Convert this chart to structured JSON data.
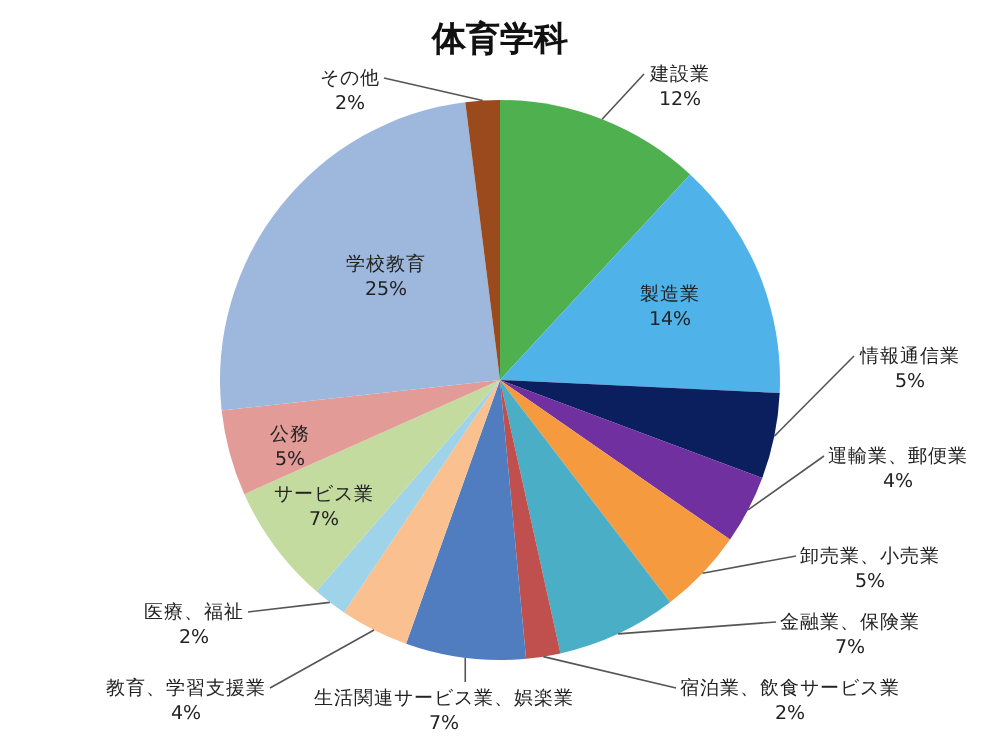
{
  "chart_data": {
    "type": "pie",
    "title": "体育学科",
    "categories": [
      "建設業",
      "製造業",
      "情報通信業",
      "運輸業、郵便業",
      "卸売業、小売業",
      "金融業、保険業",
      "宿泊業、飲食サービス業",
      "生活関連サービス業、娯楽業",
      "教育、学習支援業",
      "医療、福祉",
      "サービス業",
      "公務",
      "学校教育",
      "その他"
    ],
    "values": [
      12,
      14,
      5,
      4,
      5,
      7,
      2,
      7,
      4,
      2,
      7,
      5,
      25,
      2
    ],
    "value_labels": [
      "12%",
      "14%",
      "5%",
      "4%",
      "5%",
      "7%",
      "2%",
      "7%",
      "4%",
      "2%",
      "7%",
      "5%",
      "25%",
      "2%"
    ],
    "colors": [
      "#4eb04e",
      "#4fb3ea",
      "#0b1f5e",
      "#7030a0",
      "#f59a3e",
      "#4aaec6",
      "#c0504d",
      "#4f7dc0",
      "#fac090",
      "#9fd3ea",
      "#c4dba0",
      "#e39b98",
      "#9db8dc",
      "#9b4a1e"
    ]
  }
}
